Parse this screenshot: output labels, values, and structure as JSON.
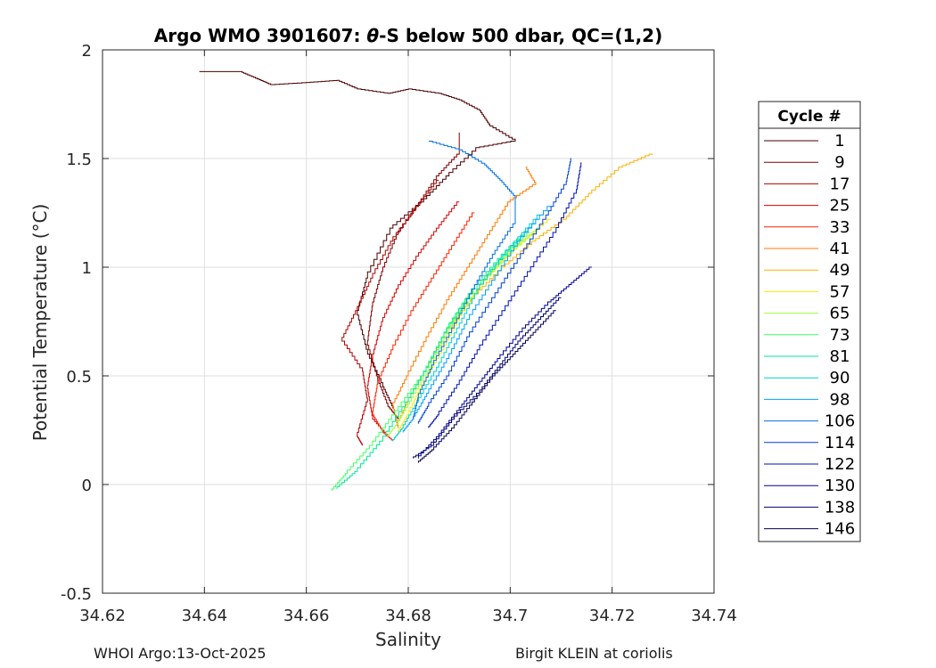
{
  "chart_data": {
    "type": "line",
    "title": "Argo WMO 3901607: θ-S below 500 dbar,  QC=(1,2)",
    "title_parts": {
      "prefix": "Argo WMO 3901607: ",
      "symbol": "θ",
      "suffix": "-S below 500 dbar,  QC=(1,2)"
    },
    "xlabel": "Salinity",
    "ylabel": "Potential Temperature (°C)",
    "xlim": [
      34.62,
      34.74
    ],
    "ylim": [
      -0.5,
      2
    ],
    "xticks": [
      34.62,
      34.64,
      34.66,
      34.68,
      34.7,
      34.72,
      34.74
    ],
    "xtick_labels": [
      "34.62",
      "34.64",
      "34.66",
      "34.68",
      "34.7",
      "34.72",
      "34.74"
    ],
    "yticks": [
      -0.5,
      0,
      0.5,
      1,
      1.5,
      2
    ],
    "ytick_labels": [
      "-0.5",
      "0",
      "0.5",
      "1",
      "1.5",
      "2"
    ],
    "grid": true,
    "legend_title": "Cycle #",
    "legend_position": "right",
    "series": [
      {
        "name": "1",
        "color": "#4a0000",
        "path": [
          [
            34.639,
            1.9
          ],
          [
            34.647,
            1.9
          ],
          [
            34.65,
            1.87
          ],
          [
            34.653,
            1.84
          ],
          [
            34.66,
            1.85
          ],
          [
            34.666,
            1.86
          ],
          [
            34.67,
            1.82
          ],
          [
            34.676,
            1.8
          ],
          [
            34.68,
            1.82
          ],
          [
            34.686,
            1.8
          ],
          [
            34.69,
            1.77
          ],
          [
            34.694,
            1.72
          ],
          [
            34.696,
            1.65
          ],
          [
            34.701,
            1.58
          ],
          [
            34.694,
            1.55
          ],
          [
            34.688,
            1.42
          ],
          [
            34.683,
            1.3
          ],
          [
            34.677,
            1.18
          ],
          [
            34.672,
            0.95
          ],
          [
            34.67,
            0.78
          ],
          [
            34.672,
            0.6
          ],
          [
            34.675,
            0.45
          ],
          [
            34.677,
            0.35
          ]
        ]
      },
      {
        "name": "9",
        "color": "#800000",
        "path": [
          [
            34.69,
            1.62
          ],
          [
            34.69,
            1.52
          ],
          [
            34.686,
            1.42
          ],
          [
            34.682,
            1.28
          ],
          [
            34.678,
            1.15
          ],
          [
            34.675,
            0.98
          ],
          [
            34.673,
            0.82
          ],
          [
            34.672,
            0.64
          ],
          [
            34.674,
            0.48
          ],
          [
            34.676,
            0.36
          ],
          [
            34.678,
            0.3
          ]
        ]
      },
      {
        "name": "17",
        "color": "#b00000",
        "path": [
          [
            34.686,
            1.4
          ],
          [
            34.682,
            1.28
          ],
          [
            34.677,
            1.12
          ],
          [
            34.673,
            0.95
          ],
          [
            34.67,
            0.8
          ],
          [
            34.667,
            0.66
          ],
          [
            34.671,
            0.52
          ],
          [
            34.672,
            0.38
          ],
          [
            34.67,
            0.22
          ],
          [
            34.671,
            0.18
          ]
        ]
      },
      {
        "name": "25",
        "color": "#d40000",
        "path": [
          [
            34.69,
            1.3
          ],
          [
            34.686,
            1.18
          ],
          [
            34.682,
            1.05
          ],
          [
            34.678,
            0.9
          ],
          [
            34.675,
            0.75
          ],
          [
            34.673,
            0.58
          ],
          [
            34.672,
            0.44
          ],
          [
            34.673,
            0.3
          ],
          [
            34.676,
            0.22
          ]
        ]
      },
      {
        "name": "33",
        "color": "#ff2000",
        "path": [
          [
            34.693,
            1.25
          ],
          [
            34.689,
            1.1
          ],
          [
            34.685,
            0.95
          ],
          [
            34.681,
            0.8
          ],
          [
            34.677,
            0.62
          ],
          [
            34.674,
            0.46
          ],
          [
            34.673,
            0.32
          ],
          [
            34.675,
            0.24
          ],
          [
            34.677,
            0.2
          ]
        ]
      },
      {
        "name": "41",
        "color": "#ff7a00",
        "path": [
          [
            34.703,
            1.46
          ],
          [
            34.705,
            1.38
          ],
          [
            34.7,
            1.3
          ],
          [
            34.696,
            1.15
          ],
          [
            34.692,
            1.0
          ],
          [
            34.688,
            0.85
          ],
          [
            34.684,
            0.68
          ],
          [
            34.68,
            0.5
          ],
          [
            34.677,
            0.36
          ],
          [
            34.678,
            0.26
          ]
        ]
      },
      {
        "name": "49",
        "color": "#ffb000",
        "path": [
          [
            34.728,
            1.52
          ],
          [
            34.722,
            1.46
          ],
          [
            34.716,
            1.34
          ],
          [
            34.711,
            1.22
          ],
          [
            34.705,
            1.12
          ],
          [
            34.699,
            1.0
          ],
          [
            34.693,
            0.86
          ],
          [
            34.688,
            0.7
          ],
          [
            34.684,
            0.54
          ],
          [
            34.68,
            0.38
          ],
          [
            34.678,
            0.28
          ]
        ]
      },
      {
        "name": "57",
        "color": "#ffea00",
        "path": [
          [
            34.708,
            1.22
          ],
          [
            34.702,
            1.1
          ],
          [
            34.696,
            0.96
          ],
          [
            34.691,
            0.8
          ],
          [
            34.687,
            0.62
          ],
          [
            34.683,
            0.46
          ],
          [
            34.68,
            0.32
          ],
          [
            34.678,
            0.24
          ]
        ]
      },
      {
        "name": "65",
        "color": "#a0ff40",
        "path": [
          [
            34.706,
            1.18
          ],
          [
            34.7,
            1.06
          ],
          [
            34.694,
            0.9
          ],
          [
            34.689,
            0.74
          ],
          [
            34.685,
            0.56
          ],
          [
            34.681,
            0.4
          ],
          [
            34.678,
            0.28
          ],
          [
            34.676,
            0.22
          ]
        ]
      },
      {
        "name": "73",
        "color": "#40ff60",
        "path": [
          [
            34.704,
            1.16
          ],
          [
            34.698,
            1.02
          ],
          [
            34.692,
            0.86
          ],
          [
            34.687,
            0.68
          ],
          [
            34.683,
            0.5
          ],
          [
            34.678,
            0.34
          ],
          [
            34.673,
            0.18
          ],
          [
            34.668,
            0.05
          ],
          [
            34.665,
            -0.03
          ]
        ]
      },
      {
        "name": "81",
        "color": "#00e890",
        "path": [
          [
            34.705,
            1.2
          ],
          [
            34.699,
            1.06
          ],
          [
            34.693,
            0.9
          ],
          [
            34.688,
            0.72
          ],
          [
            34.684,
            0.54
          ],
          [
            34.68,
            0.38
          ],
          [
            34.675,
            0.2
          ],
          [
            34.67,
            0.06
          ],
          [
            34.666,
            -0.02
          ]
        ]
      },
      {
        "name": "90",
        "color": "#00d0d0",
        "path": [
          [
            34.706,
            1.24
          ],
          [
            34.7,
            1.08
          ],
          [
            34.694,
            0.9
          ],
          [
            34.69,
            0.72
          ],
          [
            34.686,
            0.54
          ],
          [
            34.682,
            0.38
          ],
          [
            34.679,
            0.26
          ],
          [
            34.677,
            0.2
          ]
        ]
      },
      {
        "name": "98",
        "color": "#00a0ff",
        "path": [
          [
            34.708,
            1.28
          ],
          [
            34.702,
            1.12
          ],
          [
            34.697,
            0.94
          ],
          [
            34.692,
            0.76
          ],
          [
            34.688,
            0.58
          ],
          [
            34.684,
            0.42
          ],
          [
            34.681,
            0.3
          ],
          [
            34.679,
            0.24
          ]
        ]
      },
      {
        "name": "106",
        "color": "#0070e0",
        "path": [
          [
            34.684,
            1.58
          ],
          [
            34.69,
            1.54
          ],
          [
            34.695,
            1.47
          ],
          [
            34.698,
            1.4
          ],
          [
            34.701,
            1.32
          ],
          [
            34.701,
            1.2
          ],
          [
            34.697,
            1.06
          ],
          [
            34.693,
            0.9
          ],
          [
            34.689,
            0.72
          ],
          [
            34.685,
            0.55
          ],
          [
            34.682,
            0.4
          ],
          [
            34.681,
            0.3
          ]
        ]
      },
      {
        "name": "114",
        "color": "#0040d0",
        "path": [
          [
            34.712,
            1.5
          ],
          [
            34.711,
            1.38
          ],
          [
            34.707,
            1.22
          ],
          [
            34.702,
            1.04
          ],
          [
            34.697,
            0.86
          ],
          [
            34.692,
            0.68
          ],
          [
            34.688,
            0.5
          ],
          [
            34.684,
            0.36
          ],
          [
            34.682,
            0.28
          ]
        ]
      },
      {
        "name": "122",
        "color": "#0010b0",
        "path": [
          [
            34.714,
            1.48
          ],
          [
            34.713,
            1.34
          ],
          [
            34.709,
            1.16
          ],
          [
            34.704,
            0.98
          ],
          [
            34.699,
            0.8
          ],
          [
            34.694,
            0.62
          ],
          [
            34.69,
            0.46
          ],
          [
            34.686,
            0.32
          ],
          [
            34.684,
            0.26
          ]
        ]
      },
      {
        "name": "130",
        "color": "#000090",
        "path": [
          [
            34.716,
            1.0
          ],
          [
            34.712,
            0.92
          ],
          [
            34.708,
            0.84
          ],
          [
            34.703,
            0.72
          ],
          [
            34.698,
            0.58
          ],
          [
            34.694,
            0.46
          ],
          [
            34.69,
            0.34
          ],
          [
            34.686,
            0.22
          ],
          [
            34.682,
            0.12
          ]
        ]
      },
      {
        "name": "138",
        "color": "#000070",
        "path": [
          [
            34.71,
            0.86
          ],
          [
            34.706,
            0.76
          ],
          [
            34.702,
            0.66
          ],
          [
            34.698,
            0.54
          ],
          [
            34.694,
            0.42
          ],
          [
            34.689,
            0.3
          ],
          [
            34.685,
            0.18
          ],
          [
            34.681,
            0.12
          ]
        ]
      },
      {
        "name": "146",
        "color": "#000050",
        "path": [
          [
            34.709,
            0.8
          ],
          [
            34.705,
            0.7
          ],
          [
            34.701,
            0.6
          ],
          [
            34.697,
            0.5
          ],
          [
            34.693,
            0.38
          ],
          [
            34.689,
            0.26
          ],
          [
            34.685,
            0.16
          ],
          [
            34.682,
            0.1
          ]
        ]
      }
    ]
  },
  "footer": {
    "left": "WHOI Argo:13-Oct-2025",
    "right": "Birgit KLEIN at coriolis"
  }
}
